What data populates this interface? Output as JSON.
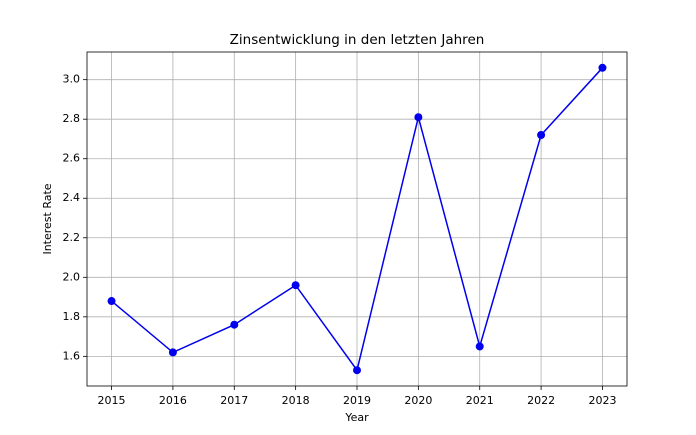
{
  "chart_data": {
    "type": "line",
    "title": "Zinsentwicklung in den letzten Jahren",
    "x_label": "Year",
    "y_label": "Interest Rate",
    "x": [
      2015,
      2016,
      2017,
      2018,
      2019,
      2020,
      2021,
      2022,
      2023
    ],
    "series": [
      {
        "name": "Interest Rate",
        "color": "#0000ee",
        "values": [
          1.88,
          1.62,
          1.76,
          1.96,
          1.53,
          2.81,
          1.65,
          2.72,
          3.06
        ]
      }
    ],
    "xlim": [
      2014.6,
      2023.4
    ],
    "xticks": [
      2015,
      2016,
      2017,
      2018,
      2019,
      2020,
      2021,
      2022,
      2023
    ],
    "ylim": [
      1.45,
      3.14
    ],
    "yticks": [
      1.6,
      1.8,
      {
        "value": 2.0,
        "label": "2.0"
      },
      2.2,
      2.4,
      2.6,
      2.8,
      {
        "value": 3.0,
        "label": "3.0"
      }
    ],
    "grid": true
  }
}
